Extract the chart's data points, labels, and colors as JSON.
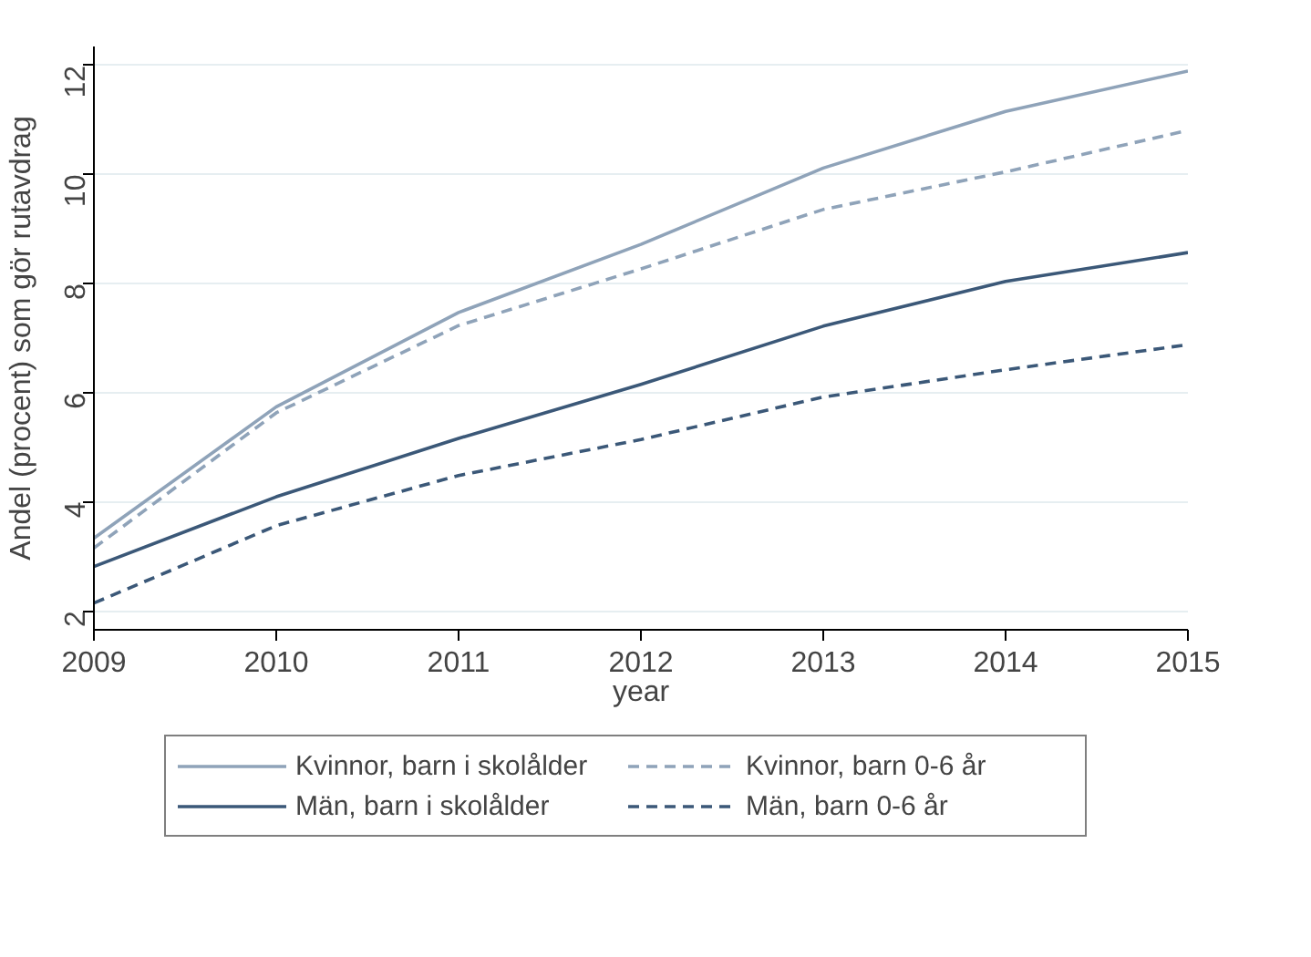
{
  "chart_data": {
    "type": "line",
    "xlabel": "year",
    "ylabel": "Andel (procent) som gör rutavdrag",
    "x": [
      2009,
      2010,
      2011,
      2012,
      2013,
      2014,
      2015
    ],
    "xlim": [
      2009,
      2015
    ],
    "xticks": [
      2009,
      2010,
      2011,
      2012,
      2013,
      2014,
      2015
    ],
    "ylim": [
      1.65,
      12.35
    ],
    "yticks": [
      2,
      4,
      6,
      8,
      10,
      12
    ],
    "grid": "y",
    "legend": "bottom",
    "marker": "none",
    "series": [
      {
        "name": "Kvinnor, barn i skolålder",
        "color": "#8fa3b9",
        "line_style": "solid",
        "values": [
          3.33,
          5.74,
          7.47,
          8.72,
          10.12,
          11.16,
          11.9
        ]
      },
      {
        "name": "Kvinnor, barn 0-6 år",
        "color": "#8fa3b9",
        "line_style": "dashed",
        "values": [
          3.15,
          5.63,
          7.23,
          8.27,
          9.36,
          10.05,
          10.81
        ]
      },
      {
        "name": "Män, barn i skolålder",
        "color": "#3b5878",
        "line_style": "solid",
        "values": [
          2.81,
          4.09,
          5.16,
          6.15,
          7.22,
          8.04,
          8.57
        ]
      },
      {
        "name": "Män, barn 0-6 år",
        "color": "#3b5878",
        "line_style": "dashed",
        "values": [
          2.14,
          3.56,
          4.48,
          5.14,
          5.92,
          6.42,
          6.88
        ]
      }
    ]
  }
}
